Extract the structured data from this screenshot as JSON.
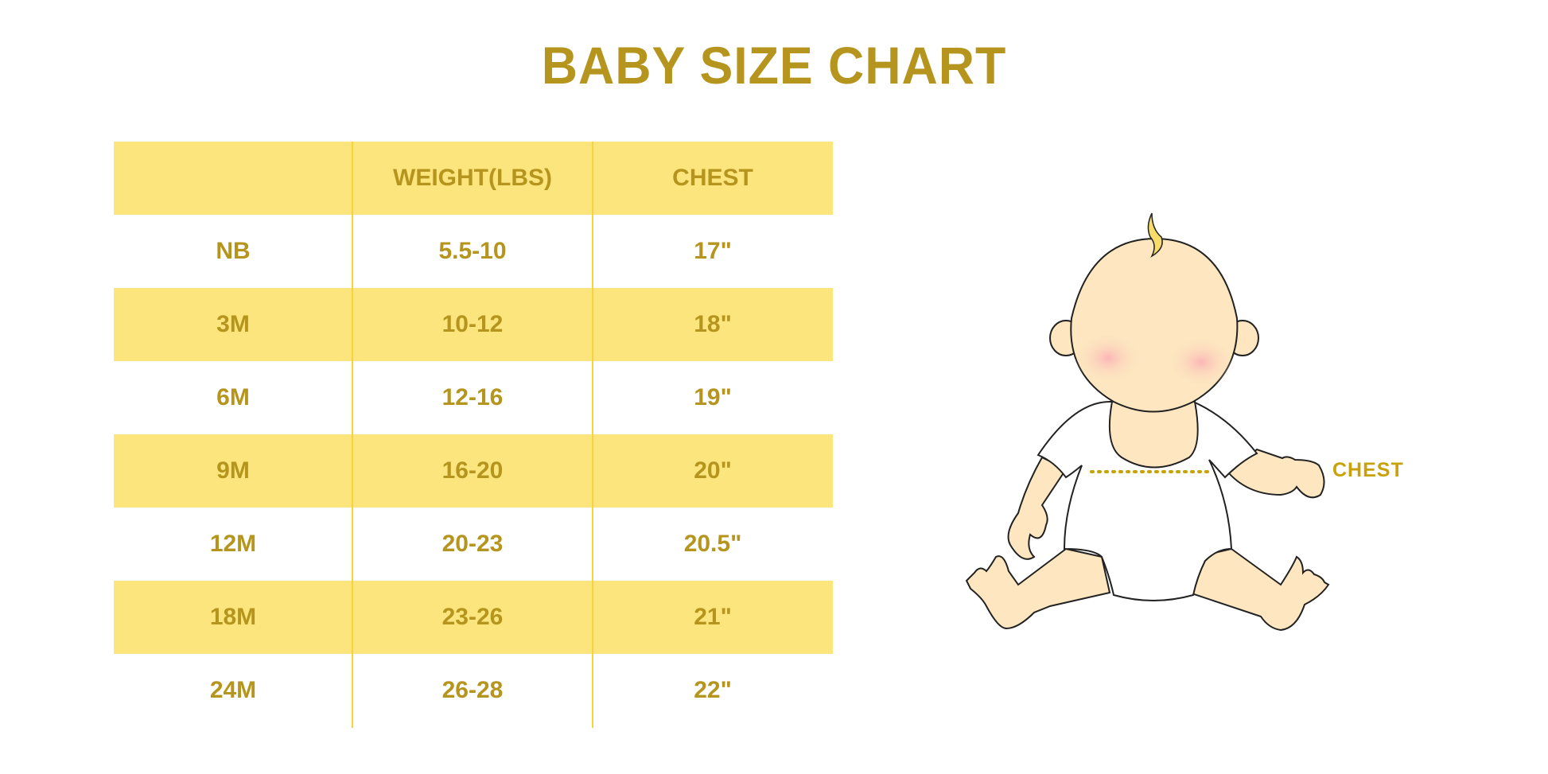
{
  "title": "BABY SIZE CHART",
  "table": {
    "headers": [
      "",
      "WEIGHT(LBS)",
      "CHEST"
    ],
    "rows": [
      [
        "NB",
        "5.5-10",
        "17\""
      ],
      [
        "3M",
        "10-12",
        "18\""
      ],
      [
        "6M",
        "12-16",
        "19\""
      ],
      [
        "9M",
        "16-20",
        "20\""
      ],
      [
        "12M",
        "20-23",
        "20.5\""
      ],
      [
        "18M",
        "23-26",
        "21\""
      ],
      [
        "24M",
        "26-28",
        "22\""
      ]
    ]
  },
  "illustration": {
    "chest_label": "CHEST"
  },
  "colors": {
    "accent_text": "#b5951e",
    "row_fill": "#fbe57c",
    "divider": "#f7d43a",
    "skin": "#fde6c0"
  }
}
